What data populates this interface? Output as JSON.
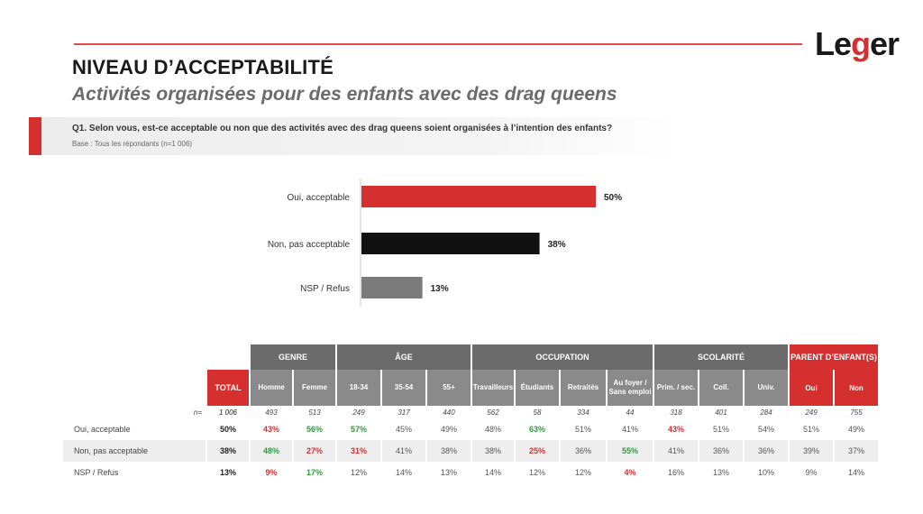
{
  "header": {
    "title": "NIVEAU D’ACCEPTABILITÉ",
    "subtitle": "Activités organisées pour des enfants avec des drag queens",
    "logo": "Leger",
    "brand_color": "#d62f2f"
  },
  "question": {
    "text": "Q1. Selon vous, est-ce acceptable ou non que des activités avec des drag queens soient organisées à l’intention des enfants?",
    "base": "Base : Tous les répondants (n=1 006)"
  },
  "chart_data": {
    "type": "bar",
    "orientation": "horizontal",
    "categories": [
      "Oui, acceptable",
      "Non, pas acceptable",
      "NSP / Refus"
    ],
    "values": [
      50,
      38,
      13
    ],
    "value_labels": [
      "50%",
      "38%",
      "13%"
    ],
    "colors": [
      "#d62f2f",
      "#111111",
      "#7a7a7a"
    ],
    "xlim": [
      0,
      100
    ]
  },
  "table": {
    "total_header": "TOTAL",
    "n_label": "n=",
    "groups": [
      {
        "name": "GENRE",
        "cols": [
          "Homme",
          "Femme"
        ]
      },
      {
        "name": "ÂGE",
        "cols": [
          "18-34",
          "35-54",
          "55+"
        ]
      },
      {
        "name": "OCCUPATION",
        "cols": [
          "Travailleurs",
          "Étudiants",
          "Retraités",
          "Au foyer / Sans emploi"
        ]
      },
      {
        "name": "SCOLARITÉ",
        "cols": [
          "Prim. / sec.",
          "Coll.",
          "Univ."
        ]
      },
      {
        "name": "PARENT D’ENFANT(S)",
        "cols": [
          "Oui",
          "Non"
        ]
      }
    ],
    "n_values": [
      "1 006",
      "493",
      "513",
      "249",
      "317",
      "440",
      "562",
      "58",
      "334",
      "44",
      "318",
      "401",
      "284",
      "249",
      "755"
    ],
    "rows": [
      {
        "label": "Oui, acceptable",
        "values": [
          "50%",
          "43%",
          "56%",
          "57%",
          "45%",
          "49%",
          "48%",
          "63%",
          "51%",
          "41%",
          "43%",
          "51%",
          "54%",
          "51%",
          "49%"
        ]
      },
      {
        "label": "Non, pas acceptable",
        "values": [
          "38%",
          "48%",
          "27%",
          "31%",
          "41%",
          "38%",
          "38%",
          "25%",
          "36%",
          "55%",
          "41%",
          "36%",
          "36%",
          "39%",
          "37%"
        ]
      },
      {
        "label": "NSP / Refus",
        "values": [
          "13%",
          "9%",
          "17%",
          "12%",
          "14%",
          "13%",
          "14%",
          "12%",
          "12%",
          "4%",
          "16%",
          "13%",
          "10%",
          "9%",
          "14%"
        ]
      }
    ]
  }
}
